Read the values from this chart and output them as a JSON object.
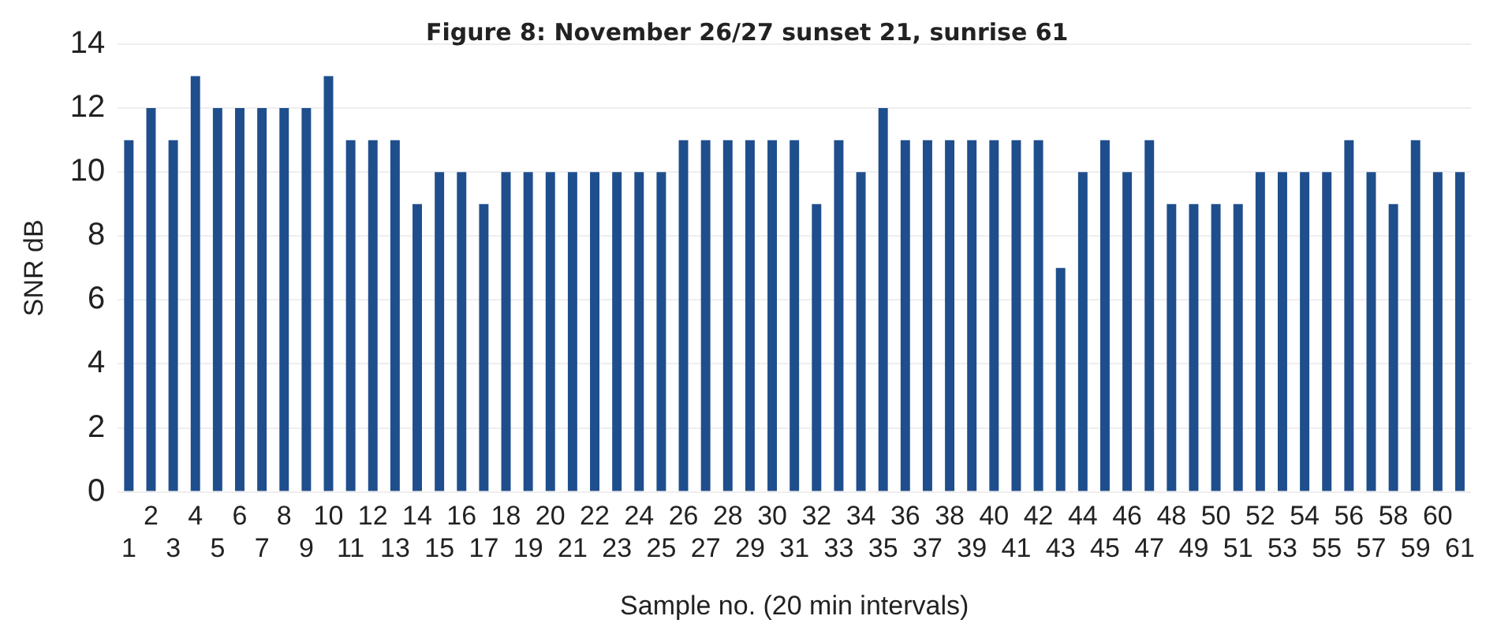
{
  "chart_data": {
    "type": "bar",
    "title": "Figure 8: November 26/27 sunset 21, sunrise 61",
    "xlabel": "Sample no. (20 min intervals)",
    "ylabel": "SNR dB",
    "categories": [
      "1",
      "2",
      "3",
      "4",
      "5",
      "6",
      "7",
      "8",
      "9",
      "10",
      "11",
      "12",
      "13",
      "14",
      "15",
      "16",
      "17",
      "18",
      "19",
      "20",
      "21",
      "22",
      "23",
      "24",
      "25",
      "26",
      "27",
      "28",
      "29",
      "30",
      "31",
      "32",
      "33",
      "34",
      "35",
      "36",
      "37",
      "38",
      "39",
      "40",
      "41",
      "42",
      "43",
      "44",
      "45",
      "46",
      "47",
      "48",
      "49",
      "50",
      "51",
      "52",
      "53",
      "54",
      "55",
      "56",
      "57",
      "58",
      "59",
      "60",
      "61"
    ],
    "values": [
      11,
      12,
      11,
      13,
      12,
      12,
      12,
      12,
      12,
      13,
      11,
      11,
      11,
      9,
      10,
      10,
      9,
      10,
      10,
      10,
      10,
      10,
      10,
      10,
      10,
      11,
      11,
      11,
      11,
      11,
      11,
      9,
      11,
      10,
      12,
      11,
      11,
      11,
      11,
      11,
      11,
      11,
      7,
      10,
      11,
      10,
      11,
      9,
      9,
      9,
      9,
      10,
      10,
      10,
      10,
      11,
      10,
      9,
      11,
      10,
      10
    ],
    "color": "#1f4e8c",
    "ylim": [
      0,
      14
    ],
    "yticks": [
      0,
      2,
      4,
      6,
      8,
      10,
      12,
      14
    ],
    "grid": "y"
  }
}
